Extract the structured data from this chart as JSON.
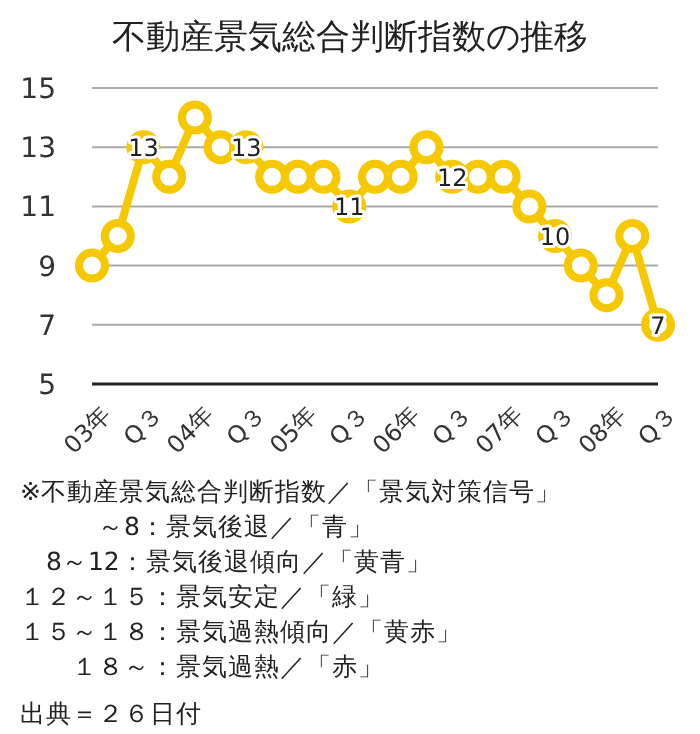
{
  "chart_data": {
    "type": "line",
    "title": "不動産景気総合判断指数の推移",
    "categories": [
      "03年",
      null,
      "Q３",
      null,
      "04年",
      null,
      "Q３",
      null,
      "05年",
      null,
      "Q３",
      null,
      "06年",
      null,
      "Q３",
      null,
      "07年",
      null,
      "Q３",
      null,
      "08年",
      null,
      "Q３"
    ],
    "series": [
      {
        "color": "#f6c800",
        "values": [
          9,
          10,
          13,
          12,
          14,
          13,
          13,
          12,
          12,
          12,
          11,
          12,
          12,
          13,
          12,
          12,
          12,
          11,
          10,
          9,
          8,
          10,
          7
        ],
        "value_labels": [
          null,
          null,
          "13",
          null,
          null,
          null,
          "13",
          null,
          null,
          null,
          "11",
          null,
          null,
          null,
          "12",
          null,
          null,
          null,
          "10",
          null,
          null,
          null,
          "7"
        ]
      }
    ],
    "ylim": [
      5,
      15
    ],
    "yticks": [
      5,
      7,
      9,
      11,
      13,
      15
    ],
    "grid": "y",
    "marker": "circle",
    "annotations": [
      "※不動産景気総合判断指数／「景気対策信号」",
      "　　　～8：景気後退／「青」",
      "　8～12：景気後退傾向／「黄青」",
      "１２～１５：景気安定／「緑」",
      "１５～１８：景気過熱傾向／「黄赤」",
      "　　１８～：景気過熱／「赤」",
      "出典＝２６日付"
    ]
  }
}
